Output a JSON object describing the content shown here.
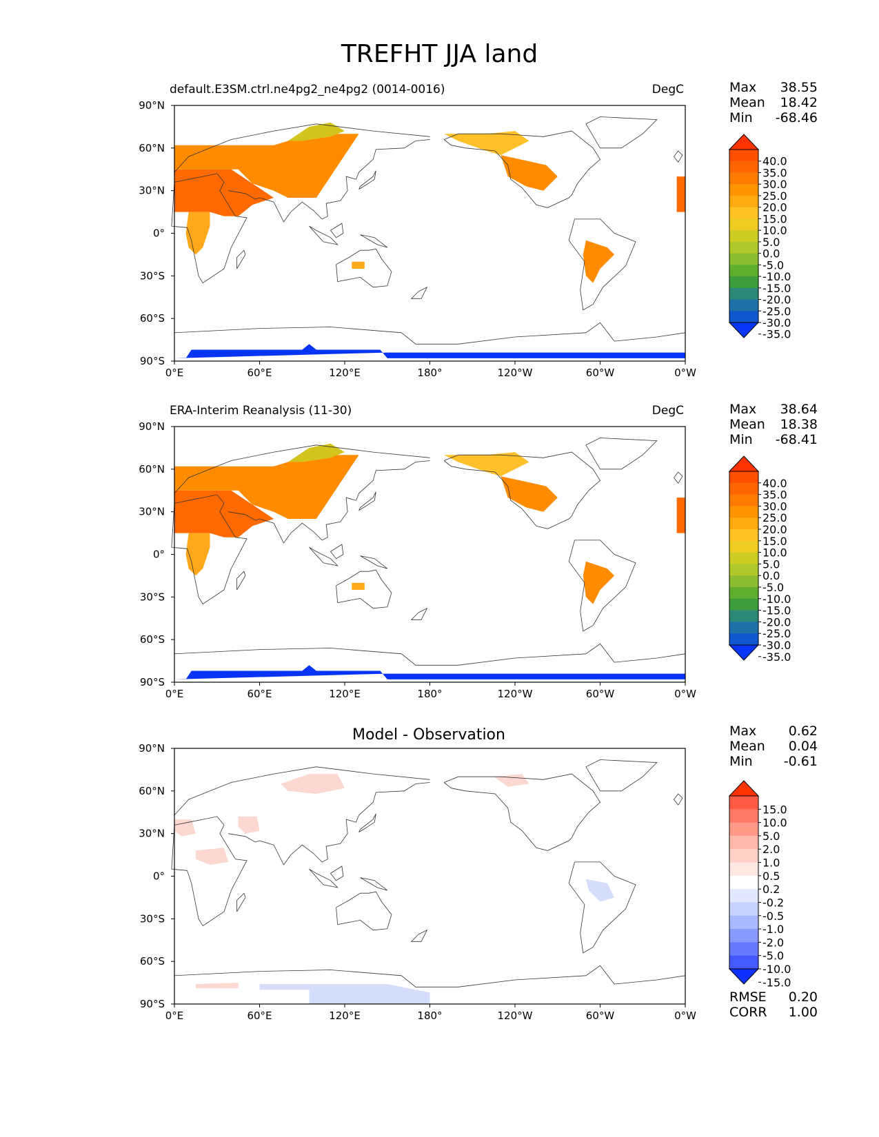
{
  "title": "TREFHT JJA land",
  "panels": [
    {
      "left_title": "default.E3SM.ctrl.ne4pg2_ne4pg2 (0014-0016)",
      "center_title": "",
      "units": "DegC",
      "stats": [
        {
          "label": "Max",
          "value": "38.55"
        },
        {
          "label": "Mean",
          "value": "18.42"
        },
        {
          "label": "Min",
          "value": "-68.46"
        }
      ],
      "colorbar": {
        "labels": [
          "40.0",
          "35.0",
          "30.0",
          "25.0",
          "20.0",
          "15.0",
          "10.0",
          "5.0",
          "0.0",
          "-5.0",
          "-10.0",
          "-15.0",
          "-20.0",
          "-25.0",
          "-30.0",
          "-35.0"
        ],
        "colors": [
          "#ff3300",
          "#ff5000",
          "#ff6600",
          "#ff7c00",
          "#ff9400",
          "#ffaa10",
          "#ffc225",
          "#eecc22",
          "#cccc22",
          "#b0c82a",
          "#8cbc32",
          "#5fae2e",
          "#3e9e3e",
          "#2e8878",
          "#2070a8",
          "#1058d0",
          "#0836f8"
        ]
      },
      "footer_stats": []
    },
    {
      "left_title": "ERA-Interim Reanalysis (11-30)",
      "center_title": "",
      "units": "DegC",
      "stats": [
        {
          "label": "Max",
          "value": "38.64"
        },
        {
          "label": "Mean",
          "value": "18.38"
        },
        {
          "label": "Min",
          "value": "-68.41"
        }
      ],
      "colorbar": {
        "labels": [
          "40.0",
          "35.0",
          "30.0",
          "25.0",
          "20.0",
          "15.0",
          "10.0",
          "5.0",
          "0.0",
          "-5.0",
          "-10.0",
          "-15.0",
          "-20.0",
          "-25.0",
          "-30.0",
          "-35.0"
        ],
        "colors": [
          "#ff3300",
          "#ff5000",
          "#ff6600",
          "#ff7c00",
          "#ff9400",
          "#ffaa10",
          "#ffc225",
          "#eecc22",
          "#cccc22",
          "#b0c82a",
          "#8cbc32",
          "#5fae2e",
          "#3e9e3e",
          "#2e8878",
          "#2070a8",
          "#1058d0",
          "#0836f8"
        ]
      },
      "footer_stats": []
    },
    {
      "left_title": "",
      "center_title": "Model - Observation",
      "units": "",
      "stats": [
        {
          "label": "Max",
          "value": "0.62"
        },
        {
          "label": "Mean",
          "value": "0.04"
        },
        {
          "label": "Min",
          "value": "-0.61"
        }
      ],
      "colorbar": {
        "labels": [
          "15.0",
          "10.0",
          "5.0",
          "2.0",
          "1.0",
          "0.5",
          "0.2",
          "-0.2",
          "-0.5",
          "-1.0",
          "-2.0",
          "-5.0",
          "-10.0",
          "-15.0"
        ],
        "colors": [
          "#ff3300",
          "#ff5a44",
          "#ff7a66",
          "#ff9a88",
          "#ffb8aa",
          "#ffd2c8",
          "#ffe8e2",
          "#ffffff",
          "#e2e8ff",
          "#c8d2ff",
          "#aab8ff",
          "#889aff",
          "#667aff",
          "#445aff",
          "#1030ff"
        ]
      },
      "footer_stats": [
        {
          "label": "RMSE",
          "value": "0.20"
        },
        {
          "label": "CORR",
          "value": "1.00"
        }
      ]
    }
  ],
  "axes": {
    "lat_labels": [
      "90°N",
      "60°N",
      "30°N",
      "0°",
      "30°S",
      "60°S",
      "90°S"
    ],
    "lon_labels": [
      "0°E",
      "60°E",
      "120°E",
      "180°",
      "120°W",
      "60°W",
      "0°W"
    ]
  },
  "legend_colors": {
    "coast": "#333333",
    "warm_deep": "#ff6a00",
    "warm_mid": "#ff8c00",
    "warm_light": "#ffa81a",
    "yellow": "#ffc02a",
    "olive": "#d4c41e",
    "antarctic_blue": "#0835f5",
    "diff_pink": "#fcd8d0",
    "diff_blue": "#d6ddfa"
  }
}
